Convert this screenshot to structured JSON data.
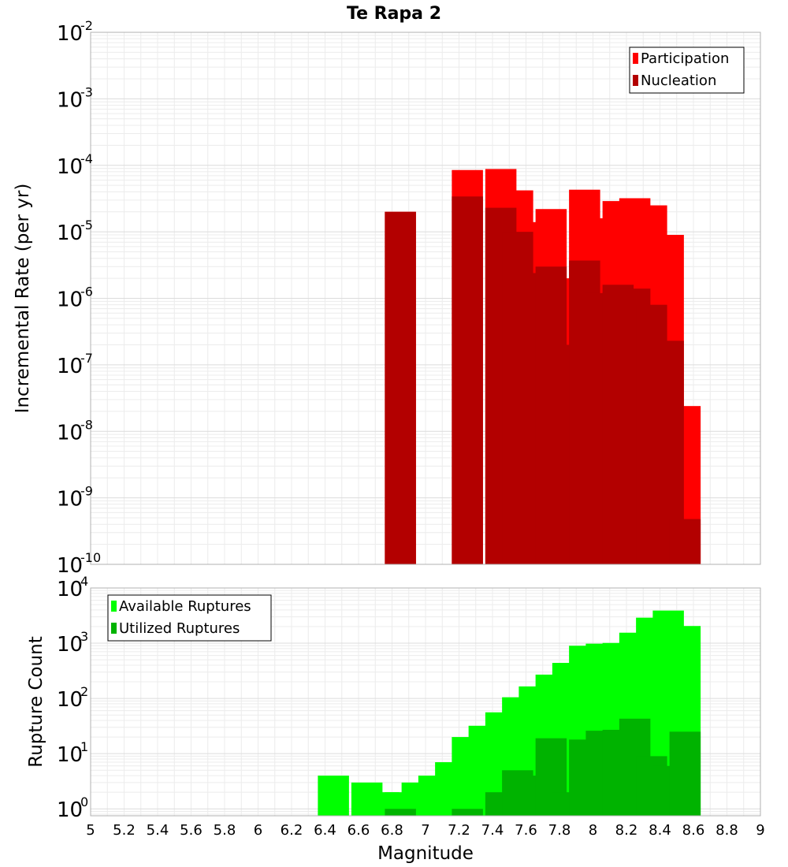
{
  "chart_data": {
    "title": "Te Rapa 2",
    "xlabel": "Magnitude",
    "xlim": [
      5,
      9
    ],
    "xticks": [
      "5",
      "5.2",
      "5.4",
      "5.6",
      "5.8",
      "6",
      "6.2",
      "6.4",
      "6.6",
      "6.8",
      "7",
      "7.2",
      "7.4",
      "7.6",
      "7.8",
      "8",
      "8.2",
      "8.4",
      "8.6",
      "8.8",
      "9"
    ],
    "grid": true,
    "panels": [
      {
        "type": "bar",
        "scale": "log",
        "ylabel": "Incremental Rate (per yr)",
        "ylim": [
          1e-10,
          0.01
        ],
        "yticks": [
          {
            "base": "10",
            "exp": "-10",
            "value": 1e-10
          },
          {
            "base": "10",
            "exp": "-9",
            "value": 1e-09
          },
          {
            "base": "10",
            "exp": "-8",
            "value": 1e-08
          },
          {
            "base": "10",
            "exp": "-7",
            "value": 1e-07
          },
          {
            "base": "10",
            "exp": "-6",
            "value": 1e-06
          },
          {
            "base": "10",
            "exp": "-5",
            "value": 1e-05
          },
          {
            "base": "10",
            "exp": "-4",
            "value": 0.0001
          },
          {
            "base": "10",
            "exp": "-3",
            "value": 0.001
          },
          {
            "base": "10",
            "exp": "-2",
            "value": 0.01
          }
        ],
        "legend_position": "top-right",
        "series": [
          {
            "name": "Participation",
            "color": "#ff0000",
            "x": [
              6.85,
              7.25,
              7.45,
              7.55,
              7.65,
              7.75,
              7.85,
              7.95,
              8.05,
              8.15,
              8.25,
              8.35,
              8.45,
              8.55
            ],
            "values": [
              2e-05,
              8.5e-05,
              8.8e-05,
              4.2e-05,
              1.4e-05,
              2.2e-05,
              2e-06,
              4.3e-05,
              1.6e-05,
              2.9e-05,
              3.2e-05,
              2.5e-05,
              9e-06,
              2.4e-08
            ]
          },
          {
            "name": "Nucleation",
            "color": "#b30000",
            "x": [
              6.85,
              7.25,
              7.45,
              7.55,
              7.65,
              7.75,
              7.85,
              7.95,
              8.05,
              8.15,
              8.25,
              8.35,
              8.45,
              8.55
            ],
            "values": [
              2e-05,
              3.4e-05,
              2.3e-05,
              1e-05,
              2.4e-06,
              3e-06,
              2e-07,
              3.7e-06,
              1.2e-06,
              1.6e-06,
              1.4e-06,
              8e-07,
              2.3e-07,
              4.8e-10
            ]
          }
        ]
      },
      {
        "type": "bar",
        "scale": "log",
        "ylabel": "Rupture Count",
        "ylim": [
          0.75,
          10000
        ],
        "yticks": [
          {
            "base": "10",
            "exp": "0",
            "value": 1
          },
          {
            "base": "10",
            "exp": "1",
            "value": 10
          },
          {
            "base": "10",
            "exp": "2",
            "value": 100
          },
          {
            "base": "10",
            "exp": "3",
            "value": 1000
          },
          {
            "base": "10",
            "exp": "4",
            "value": 10000
          }
        ],
        "legend_position": "top-left",
        "series": [
          {
            "name": "Available Ruptures",
            "color": "#00ff00",
            "x": [
              6.45,
              6.65,
              6.75,
              6.85,
              6.95,
              7.05,
              7.15,
              7.25,
              7.35,
              7.45,
              7.55,
              7.65,
              7.75,
              7.85,
              7.95,
              8.05,
              8.15,
              8.25,
              8.35,
              8.45,
              8.55
            ],
            "values": [
              4,
              3,
              2,
              2,
              3,
              4,
              7,
              20,
              32,
              56,
              105,
              165,
              270,
              440,
              900,
              980,
              1010,
              1550,
              2900,
              3900,
              2050
            ]
          },
          {
            "name": "Utilized Ruptures",
            "color": "#00b300",
            "x": [
              6.85,
              7.25,
              7.45,
              7.55,
              7.65,
              7.75,
              7.85,
              7.95,
              8.05,
              8.15,
              8.25,
              8.35,
              8.45,
              8.55
            ],
            "values": [
              1,
              1,
              2,
              5,
              4,
              19,
              2,
              18,
              26,
              27,
              43,
              9,
              6,
              25
            ]
          }
        ]
      }
    ]
  }
}
